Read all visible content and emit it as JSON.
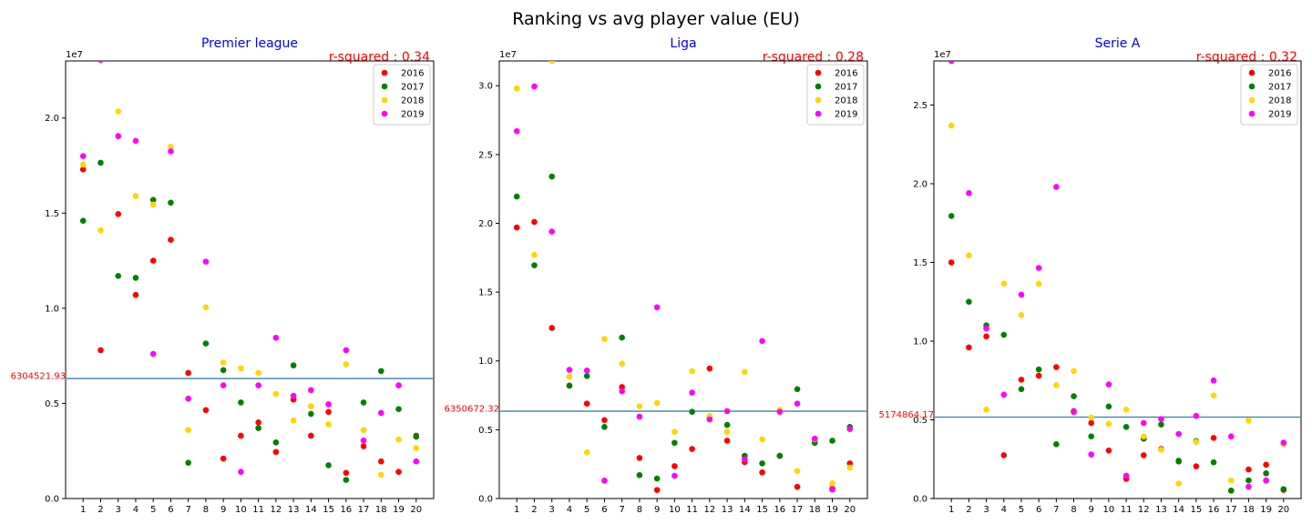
{
  "figure_title": "Ranking vs avg player value (EU)",
  "legend_labels": [
    "2016",
    "2017",
    "2018",
    "2019"
  ],
  "colors": {
    "2016": "#ff0000",
    "2017": "#008000",
    "2018": "#ffd700",
    "2019": "#ff00ff",
    "mean_line": "#4a8bb5"
  },
  "chart_data": [
    {
      "type": "scatter",
      "title": "Premier league",
      "annotation": "r-squared : 0.34",
      "mean_label": "6304521.93",
      "mean_value": 6304521.93,
      "y_offset_label": "1e7",
      "ylim": [
        0,
        23000000
      ],
      "yticks": [
        0,
        5000000,
        10000000,
        15000000,
        20000000
      ],
      "ytick_labels": [
        "0.0",
        "0.5",
        "1.0",
        "1.5",
        "2.0"
      ],
      "x": [
        1,
        2,
        3,
        4,
        5,
        6,
        7,
        8,
        9,
        10,
        11,
        12,
        13,
        14,
        15,
        16,
        17,
        18,
        19,
        20
      ],
      "legend_placement": "upper right",
      "series": [
        {
          "name": "2016",
          "values": [
            17300000,
            7800000,
            14950000,
            10700000,
            12500000,
            13600000,
            6600000,
            4650000,
            2100000,
            3300000,
            4000000,
            2450000,
            5200000,
            3300000,
            4550000,
            1350000,
            2750000,
            1950000,
            1400000,
            3300000
          ]
        },
        {
          "name": "2017",
          "values": [
            14600000,
            17650000,
            11700000,
            11600000,
            15700000,
            15550000,
            1880000,
            8150000,
            6750000,
            5050000,
            3700000,
            2950000,
            7000000,
            4450000,
            1750000,
            980000,
            5050000,
            6700000,
            4700000,
            3250000
          ]
        },
        {
          "name": "2018",
          "values": [
            17550000,
            14100000,
            20350000,
            15900000,
            15450000,
            18500000,
            3600000,
            10050000,
            7150000,
            6850000,
            6600000,
            5500000,
            4100000,
            4850000,
            3900000,
            7050000,
            3600000,
            1250000,
            3100000,
            2650000
          ]
        },
        {
          "name": "2019",
          "values": [
            18000000,
            23050000,
            19050000,
            18800000,
            7600000,
            18250000,
            5250000,
            12450000,
            5950000,
            1400000,
            5950000,
            8450000,
            5400000,
            5700000,
            4950000,
            7800000,
            3050000,
            4500000,
            5950000,
            1950000
          ]
        }
      ]
    },
    {
      "type": "scatter",
      "title": "Liga",
      "annotation": "r-squared : 0.28",
      "mean_label": "6350672.32",
      "mean_value": 6350672.32,
      "y_offset_label": "1e7",
      "ylim": [
        0,
        31800000
      ],
      "yticks": [
        0,
        5000000,
        10000000,
        15000000,
        20000000,
        25000000,
        30000000
      ],
      "ytick_labels": [
        "0.0",
        "0.5",
        "1.0",
        "1.5",
        "2.0",
        "2.5",
        "3.0"
      ],
      "x": [
        1,
        2,
        3,
        4,
        5,
        6,
        7,
        8,
        9,
        10,
        11,
        12,
        13,
        14,
        15,
        16,
        17,
        18,
        19,
        20
      ],
      "legend_placement": "upper right",
      "series": [
        {
          "name": "2016",
          "values": [
            19700000,
            20100000,
            12400000,
            8200000,
            6900000,
            5700000,
            8100000,
            2950000,
            620000,
            2350000,
            3600000,
            9450000,
            4200000,
            2650000,
            1900000,
            3100000,
            850000,
            4100000,
            720000,
            2550000
          ]
        },
        {
          "name": "2017",
          "values": [
            21950000,
            16950000,
            23400000,
            8200000,
            8900000,
            5200000,
            11700000,
            1700000,
            1450000,
            4050000,
            6300000,
            5900000,
            5350000,
            3100000,
            2550000,
            3100000,
            7950000,
            4050000,
            4200000,
            5200000
          ]
        },
        {
          "name": "2018",
          "values": [
            29800000,
            17700000,
            31800000,
            8850000,
            3350000,
            11600000,
            9800000,
            6700000,
            6950000,
            4850000,
            9250000,
            6000000,
            4850000,
            9200000,
            4300000,
            6450000,
            2000000,
            4300000,
            1100000,
            2250000
          ]
        },
        {
          "name": "2019",
          "values": [
            26700000,
            29950000,
            19400000,
            9350000,
            9300000,
            1300000,
            7800000,
            5950000,
            13900000,
            1650000,
            7700000,
            5750000,
            6350000,
            2850000,
            11450000,
            6300000,
            6900000,
            4350000,
            650000,
            5050000
          ]
        }
      ]
    },
    {
      "type": "scatter",
      "title": "Serie A",
      "annotation": "r-squared : 0.32",
      "mean_label": "5174864.17",
      "mean_value": 5174864.17,
      "y_offset_label": "1e7",
      "ylim": [
        0,
        27800000
      ],
      "yticks": [
        0,
        5000000,
        10000000,
        15000000,
        20000000,
        25000000
      ],
      "ytick_labels": [
        "0.0",
        "0.5",
        "1.0",
        "1.5",
        "2.0",
        "2.5"
      ],
      "x": [
        1,
        2,
        3,
        4,
        5,
        6,
        7,
        8,
        9,
        10,
        11,
        12,
        13,
        14,
        15,
        16,
        17,
        18,
        19,
        20
      ],
      "legend_placement": "upper right",
      "series": [
        {
          "name": "2016",
          "values": [
            15000000,
            9600000,
            10300000,
            2750000,
            7550000,
            7800000,
            8350000,
            5550000,
            4800000,
            3050000,
            1250000,
            2750000,
            3150000,
            2350000,
            2050000,
            3850000,
            500000,
            1850000,
            2150000,
            550000
          ]
        },
        {
          "name": "2017",
          "values": [
            17950000,
            12500000,
            11000000,
            10400000,
            6950000,
            8200000,
            3450000,
            6500000,
            3950000,
            5850000,
            4550000,
            3800000,
            4700000,
            2400000,
            3650000,
            2300000,
            500000,
            1150000,
            1600000,
            600000
          ]
        },
        {
          "name": "2018",
          "values": [
            23700000,
            15450000,
            5650000,
            13650000,
            11650000,
            13650000,
            7200000,
            8100000,
            5150000,
            4750000,
            5650000,
            3950000,
            3100000,
            950000,
            3600000,
            6550000,
            1150000,
            4950000,
            1100000,
            3450000
          ]
        },
        {
          "name": "2019",
          "values": [
            27800000,
            19400000,
            10800000,
            6600000,
            12950000,
            14650000,
            19800000,
            5500000,
            2800000,
            7250000,
            1450000,
            4800000,
            5050000,
            4100000,
            5250000,
            7500000,
            3950000,
            750000,
            1150000,
            3550000
          ]
        }
      ]
    }
  ]
}
